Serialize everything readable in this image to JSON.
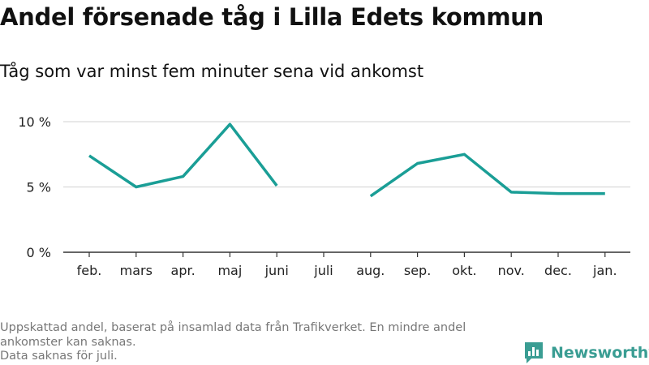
{
  "title": "Andel försenade tåg i Lilla Edets kommun",
  "subtitle": "Tåg som var minst fem minuter sena vid ankomst",
  "footnote": {
    "line1": "Uppskattad andel, baserat på insamlad data från Trafikverket. En mindre andel ankomster kan saknas.",
    "line2": "Data saknas för juli."
  },
  "brand": {
    "name": "Newsworthy",
    "color": "#3a9d93"
  },
  "chart_data": {
    "type": "line",
    "categories": [
      "feb.",
      "mars",
      "apr.",
      "maj",
      "juni",
      "juli",
      "aug.",
      "sep.",
      "okt.",
      "nov.",
      "dec.",
      "jan."
    ],
    "series": [
      {
        "values": [
          7.4,
          5.0,
          5.8,
          9.8,
          5.1,
          null,
          4.3,
          6.8,
          7.5,
          4.6,
          4.5,
          4.5
        ]
      }
    ],
    "ylim": [
      0,
      10
    ],
    "yticks": [
      0,
      5,
      10
    ],
    "ytick_labels": [
      "0 %",
      "5 %",
      "10 %"
    ],
    "grid": true,
    "line_color": "#1a9e96"
  }
}
